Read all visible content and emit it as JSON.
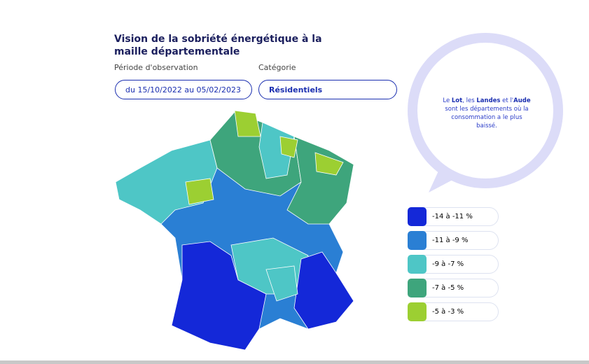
{
  "header": {
    "title": "Vision de la sobriété énergétique à la maille départementale"
  },
  "filters": [
    {
      "label": "Période d'observation",
      "value": "du 15/10/2022 au 05/02/2023"
    },
    {
      "label": "Catégorie",
      "value": "Résidentiels"
    }
  ],
  "bubble": {
    "parts": [
      {
        "text": "Le ",
        "bold": false
      },
      {
        "text": "Lot",
        "bold": true
      },
      {
        "text": ", les ",
        "bold": false
      },
      {
        "text": "Landes",
        "bold": true
      },
      {
        "text": " et l'",
        "bold": false
      },
      {
        "text": "Aude",
        "bold": true
      },
      {
        "text": " sont les départements où la consommation a le plus baissé.",
        "bold": false
      }
    ]
  },
  "legend": [
    {
      "label": "-14 à -11 %",
      "color": "#1428d8"
    },
    {
      "label": "-11 à -9 %",
      "color": "#2a7fd4"
    },
    {
      "label": "-9 à -7 %",
      "color": "#4ec6c6"
    },
    {
      "label": "-7 à -5 %",
      "color": "#3ea57c"
    },
    {
      "label": "-5 à -3 %",
      "color": "#9ccf32"
    }
  ]
}
